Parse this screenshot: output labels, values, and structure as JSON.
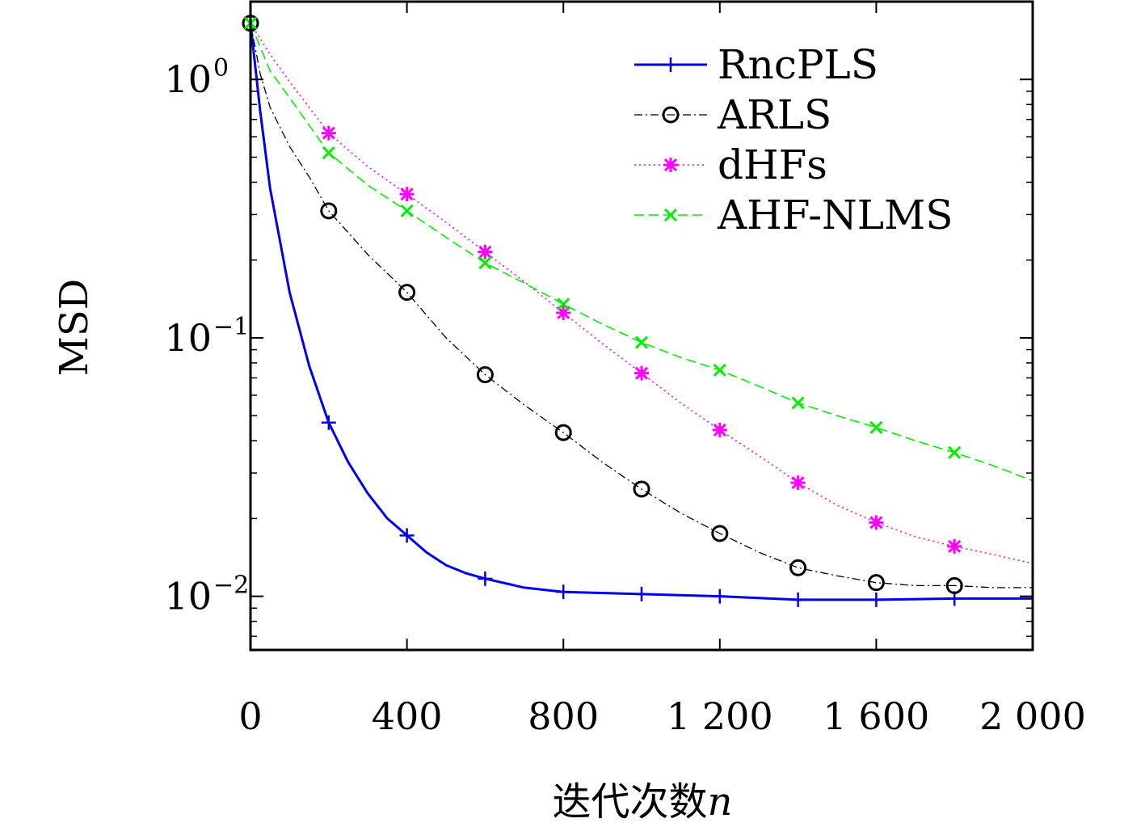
{
  "chart_data": {
    "type": "line",
    "xlabel": "迭代次数",
    "xlabel_var": "n",
    "ylabel": "MSD",
    "xlim": [
      0,
      2000
    ],
    "ylim": [
      0.0062,
      2.0
    ],
    "yscale": "log",
    "grid": false,
    "legend_position": "top-right",
    "xticks": [
      {
        "value": 0,
        "label": "0"
      },
      {
        "value": 400,
        "label": "400"
      },
      {
        "value": 800,
        "label": "800"
      },
      {
        "value": 1200,
        "label": "1 200"
      },
      {
        "value": 1600,
        "label": "1 600"
      },
      {
        "value": 2000,
        "label": "2 000"
      }
    ],
    "yticks": [
      {
        "value": 1,
        "base": "10",
        "exp": "0"
      },
      {
        "value": 0.1,
        "base": "10",
        "exp": "−1"
      },
      {
        "value": 0.01,
        "base": "10",
        "exp": "−2"
      }
    ],
    "series": [
      {
        "name": "RncPLS",
        "color": "#0000ee",
        "line": "solid",
        "marker": "plus",
        "x": [
          0,
          25,
          50,
          100,
          150,
          200,
          250,
          300,
          350,
          400,
          450,
          500,
          550,
          600,
          700,
          800,
          1000,
          1200,
          1400,
          1600,
          1800,
          2000
        ],
        "y": [
          1.65,
          0.75,
          0.38,
          0.15,
          0.078,
          0.047,
          0.033,
          0.025,
          0.02,
          0.0172,
          0.0148,
          0.0132,
          0.0123,
          0.0117,
          0.0108,
          0.0104,
          0.0102,
          0.01,
          0.0097,
          0.0097,
          0.0098,
          0.0098
        ],
        "markers_x": [
          200,
          400,
          600,
          800,
          1000,
          1200,
          1400,
          1600,
          1800
        ],
        "markers_y": [
          0.047,
          0.0172,
          0.0117,
          0.0104,
          0.0102,
          0.01,
          0.0097,
          0.0097,
          0.0098
        ]
      },
      {
        "name": "ARLS",
        "color": "#000000",
        "line": "dashdot",
        "marker": "circle",
        "x": [
          0,
          25,
          50,
          100,
          150,
          200,
          300,
          400,
          500,
          600,
          700,
          800,
          900,
          1000,
          1100,
          1200,
          1300,
          1400,
          1500,
          1600,
          1700,
          1800,
          1900,
          2000
        ],
        "y": [
          1.65,
          1.05,
          0.78,
          0.55,
          0.42,
          0.31,
          0.21,
          0.15,
          0.1,
          0.072,
          0.055,
          0.043,
          0.033,
          0.026,
          0.021,
          0.0175,
          0.0148,
          0.0129,
          0.012,
          0.0113,
          0.011,
          0.011,
          0.0108,
          0.0108
        ],
        "markers_x": [
          0,
          200,
          400,
          600,
          800,
          1000,
          1200,
          1400,
          1600,
          1800
        ],
        "markers_y": [
          1.65,
          0.31,
          0.15,
          0.072,
          0.043,
          0.026,
          0.0175,
          0.0129,
          0.0113,
          0.011
        ]
      },
      {
        "name": "dHFs",
        "color": "#ff00ff",
        "line": "dotted",
        "marker": "asterisk",
        "x": [
          0,
          50,
          100,
          200,
          300,
          400,
          500,
          600,
          700,
          800,
          900,
          1000,
          1100,
          1200,
          1300,
          1400,
          1500,
          1600,
          1700,
          1800,
          1900,
          2000
        ],
        "y": [
          1.65,
          1.25,
          0.98,
          0.62,
          0.46,
          0.36,
          0.28,
          0.215,
          0.165,
          0.125,
          0.095,
          0.073,
          0.056,
          0.044,
          0.035,
          0.0275,
          0.0225,
          0.0193,
          0.017,
          0.0156,
          0.0145,
          0.0134
        ],
        "markers_x": [
          200,
          400,
          600,
          800,
          1000,
          1200,
          1400,
          1600,
          1800
        ],
        "markers_y": [
          0.62,
          0.36,
          0.215,
          0.125,
          0.073,
          0.044,
          0.0275,
          0.0193,
          0.0156
        ]
      },
      {
        "name": "AHF-NLMS",
        "color": "#00ee00",
        "line": "dashed",
        "marker": "cross",
        "x": [
          0,
          50,
          100,
          200,
          300,
          400,
          500,
          600,
          700,
          800,
          900,
          1000,
          1100,
          1200,
          1300,
          1400,
          1500,
          1600,
          1700,
          1800,
          1900,
          2000
        ],
        "y": [
          1.65,
          1.08,
          0.85,
          0.52,
          0.39,
          0.31,
          0.245,
          0.195,
          0.163,
          0.135,
          0.113,
          0.096,
          0.084,
          0.075,
          0.065,
          0.056,
          0.05,
          0.045,
          0.04,
          0.036,
          0.032,
          0.028
        ],
        "markers_x": [
          0,
          200,
          400,
          600,
          800,
          1000,
          1200,
          1400,
          1600,
          1800
        ],
        "markers_y": [
          1.65,
          0.52,
          0.31,
          0.195,
          0.135,
          0.096,
          0.075,
          0.056,
          0.045,
          0.036
        ]
      }
    ]
  }
}
